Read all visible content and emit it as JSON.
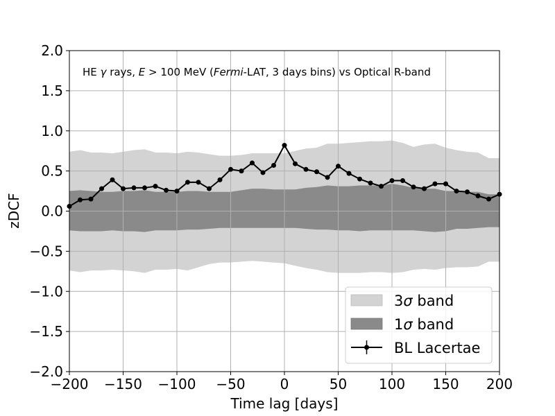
{
  "chart_data": {
    "type": "line",
    "xlabel": "Time lag [days]",
    "ylabel": "zDCF",
    "xlim": [
      -200,
      200
    ],
    "ylim": [
      -2.0,
      2.0
    ],
    "grid": true,
    "legend_position": "bottom-right",
    "x_ticks": [
      -200,
      -150,
      -100,
      -50,
      0,
      50,
      100,
      150,
      200
    ],
    "x_tick_labels": [
      "−200",
      "−150",
      "−100",
      "−50",
      "0",
      "50",
      "100",
      "150",
      "200"
    ],
    "y_ticks": [
      -2.0,
      -1.5,
      -1.0,
      -0.5,
      0.0,
      0.5,
      1.0,
      1.5,
      2.0
    ],
    "y_tick_labels": [
      "−2.0",
      "−1.5",
      "−1.0",
      "−0.5",
      "0.0",
      "0.5",
      "1.0",
      "1.5",
      "2.0"
    ],
    "annotation": {
      "prefix": "HE ",
      "gamma": "γ",
      "mid1": " rays, ",
      "E": "E",
      "gt": " > 100 MeV (",
      "fermi": "Fermi",
      "rest": "-LAT, 3 days bins) vs Optical R-band"
    },
    "legend": {
      "band3_prefix": "3",
      "band3_sigma": "σ",
      "band3_suffix": " band",
      "band1_prefix": "1",
      "band1_sigma": "σ",
      "band1_suffix": " band",
      "series": "BL Lacertae"
    },
    "colors": {
      "band3": "#d3d3d3",
      "band1": "#8a8a8a",
      "series": "#000000",
      "grid": "#b0b0b0"
    },
    "band3": {
      "x": [
        -200,
        -190,
        -180,
        -170,
        -160,
        -150,
        -140,
        -130,
        -120,
        -110,
        -100,
        -90,
        -80,
        -70,
        -60,
        -50,
        -40,
        -30,
        -20,
        -10,
        0,
        10,
        20,
        30,
        40,
        50,
        60,
        70,
        80,
        90,
        100,
        110,
        120,
        130,
        140,
        150,
        160,
        170,
        180,
        190,
        200
      ],
      "upper": [
        0.74,
        0.76,
        0.73,
        0.73,
        0.72,
        0.74,
        0.76,
        0.77,
        0.73,
        0.73,
        0.72,
        0.74,
        0.73,
        0.71,
        0.69,
        0.69,
        0.7,
        0.72,
        0.72,
        0.72,
        0.72,
        0.75,
        0.78,
        0.79,
        0.84,
        0.84,
        0.85,
        0.86,
        0.87,
        0.87,
        0.88,
        0.85,
        0.8,
        0.83,
        0.84,
        0.79,
        0.76,
        0.74,
        0.73,
        0.66,
        0.66
      ],
      "lower": [
        -0.74,
        -0.76,
        -0.74,
        -0.74,
        -0.73,
        -0.74,
        -0.75,
        -0.77,
        -0.73,
        -0.73,
        -0.72,
        -0.74,
        -0.7,
        -0.66,
        -0.64,
        -0.64,
        -0.63,
        -0.62,
        -0.63,
        -0.64,
        -0.65,
        -0.68,
        -0.71,
        -0.73,
        -0.76,
        -0.77,
        -0.77,
        -0.77,
        -0.76,
        -0.76,
        -0.77,
        -0.76,
        -0.73,
        -0.72,
        -0.73,
        -0.71,
        -0.7,
        -0.7,
        -0.69,
        -0.63,
        -0.63
      ]
    },
    "band1": {
      "x": [
        -200,
        -190,
        -180,
        -170,
        -160,
        -150,
        -140,
        -130,
        -120,
        -110,
        -100,
        -90,
        -80,
        -70,
        -60,
        -50,
        -40,
        -30,
        -20,
        -10,
        0,
        10,
        20,
        30,
        40,
        50,
        60,
        70,
        80,
        90,
        100,
        110,
        120,
        130,
        140,
        150,
        160,
        170,
        180,
        190,
        200
      ],
      "upper": [
        0.25,
        0.26,
        0.25,
        0.24,
        0.24,
        0.25,
        0.25,
        0.26,
        0.24,
        0.24,
        0.24,
        0.25,
        0.25,
        0.24,
        0.24,
        0.24,
        0.26,
        0.28,
        0.28,
        0.27,
        0.27,
        0.27,
        0.29,
        0.3,
        0.32,
        0.31,
        0.31,
        0.32,
        0.32,
        0.32,
        0.34,
        0.32,
        0.29,
        0.28,
        0.28,
        0.25,
        0.25,
        0.24,
        0.24,
        0.21,
        0.21
      ],
      "lower": [
        -0.24,
        -0.25,
        -0.25,
        -0.25,
        -0.24,
        -0.25,
        -0.25,
        -0.26,
        -0.24,
        -0.24,
        -0.24,
        -0.23,
        -0.23,
        -0.22,
        -0.21,
        -0.21,
        -0.21,
        -0.21,
        -0.21,
        -0.21,
        -0.21,
        -0.21,
        -0.22,
        -0.23,
        -0.23,
        -0.24,
        -0.24,
        -0.25,
        -0.24,
        -0.24,
        -0.24,
        -0.24,
        -0.24,
        -0.25,
        -0.26,
        -0.25,
        -0.22,
        -0.22,
        -0.21,
        -0.2,
        -0.2
      ]
    },
    "series": [
      {
        "name": "BL Lacertae",
        "x": [
          -200,
          -190,
          -180,
          -170,
          -160,
          -150,
          -140,
          -130,
          -120,
          -110,
          -100,
          -90,
          -80,
          -70,
          -60,
          -50,
          -40,
          -30,
          -20,
          -10,
          0,
          10,
          20,
          30,
          40,
          50,
          60,
          70,
          80,
          90,
          100,
          110,
          120,
          130,
          140,
          150,
          160,
          170,
          180,
          190,
          200
        ],
        "y": [
          0.06,
          0.14,
          0.15,
          0.28,
          0.39,
          0.28,
          0.29,
          0.29,
          0.31,
          0.26,
          0.25,
          0.36,
          0.36,
          0.28,
          0.39,
          0.52,
          0.5,
          0.6,
          0.48,
          0.57,
          0.82,
          0.59,
          0.52,
          0.49,
          0.42,
          0.56,
          0.47,
          0.4,
          0.35,
          0.31,
          0.38,
          0.38,
          0.3,
          0.28,
          0.34,
          0.34,
          0.25,
          0.24,
          0.19,
          0.15,
          0.21
        ]
      }
    ]
  }
}
